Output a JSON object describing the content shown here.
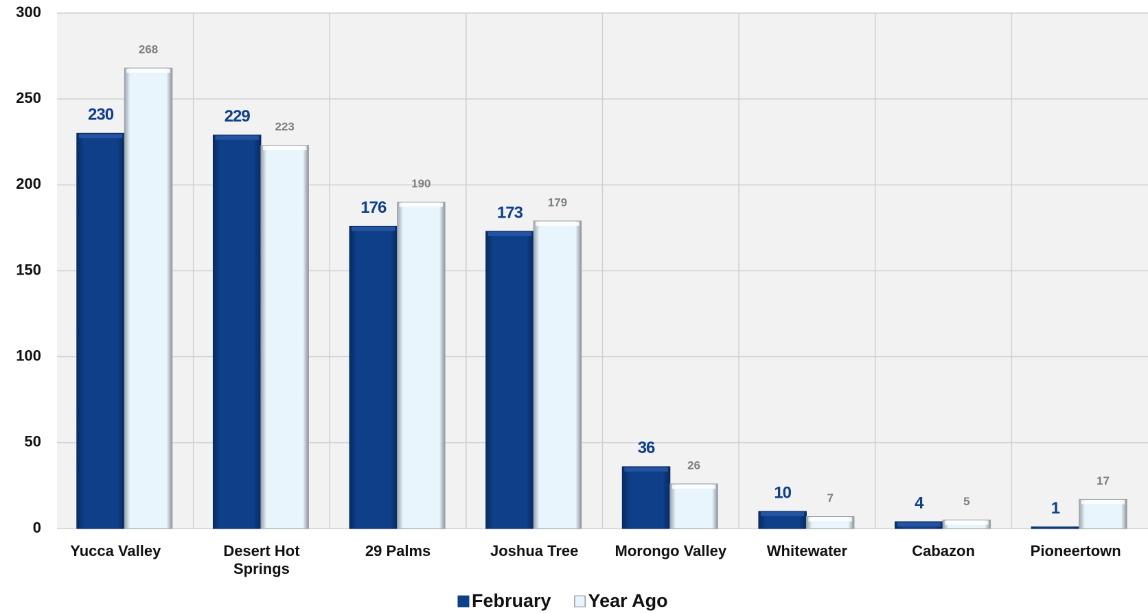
{
  "chart_data": {
    "type": "bar",
    "categories": [
      "Yucca Valley",
      "Desert Hot Springs",
      "29 Palms",
      "Joshua Tree",
      "Morongo Valley",
      "Whitewater",
      "Cabazon",
      "Pioneertown"
    ],
    "series": [
      {
        "name": "February",
        "color": "#0e3f88",
        "values": [
          230,
          229,
          176,
          173,
          36,
          10,
          4,
          1
        ]
      },
      {
        "name": "Year Ago",
        "color": "#e8f5fc",
        "values": [
          268,
          223,
          190,
          179,
          26,
          7,
          5,
          17
        ]
      }
    ],
    "ylim": [
      0,
      300
    ],
    "yticks": [
      0,
      50,
      100,
      150,
      200,
      250,
      300
    ],
    "grid": true,
    "legend": "bottom"
  }
}
